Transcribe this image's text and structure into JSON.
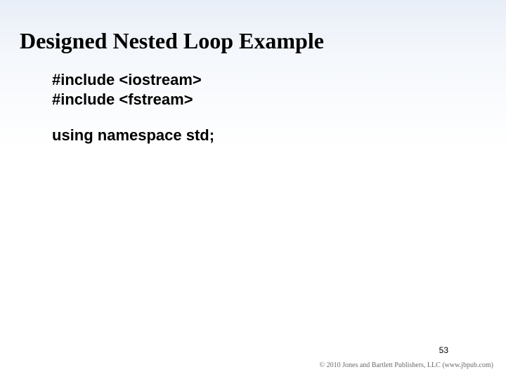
{
  "slide": {
    "title": "Designed Nested Loop Example",
    "title_fontsize": 32,
    "title_color": "#000000",
    "background_gradient_top": "#e8eef7",
    "background_gradient_bottom": "#ffffff",
    "code": {
      "lines": [
        "#include <iostream>",
        "#include <fstream>",
        "",
        "using namespace std;"
      ],
      "line0": "#include <iostream>",
      "line1": "#include <fstream>",
      "line3": "using namespace std;",
      "font_family": "Arial",
      "font_size": 22,
      "font_weight": "bold",
      "text_color": "#000000"
    },
    "page_number": "53",
    "page_number_fontsize": 12,
    "copyright": "© 2010 Jones and Bartlett Publishers, LLC (www.jbpub.com)",
    "copyright_fontsize": 10,
    "copyright_color": "#6a6a6a"
  }
}
